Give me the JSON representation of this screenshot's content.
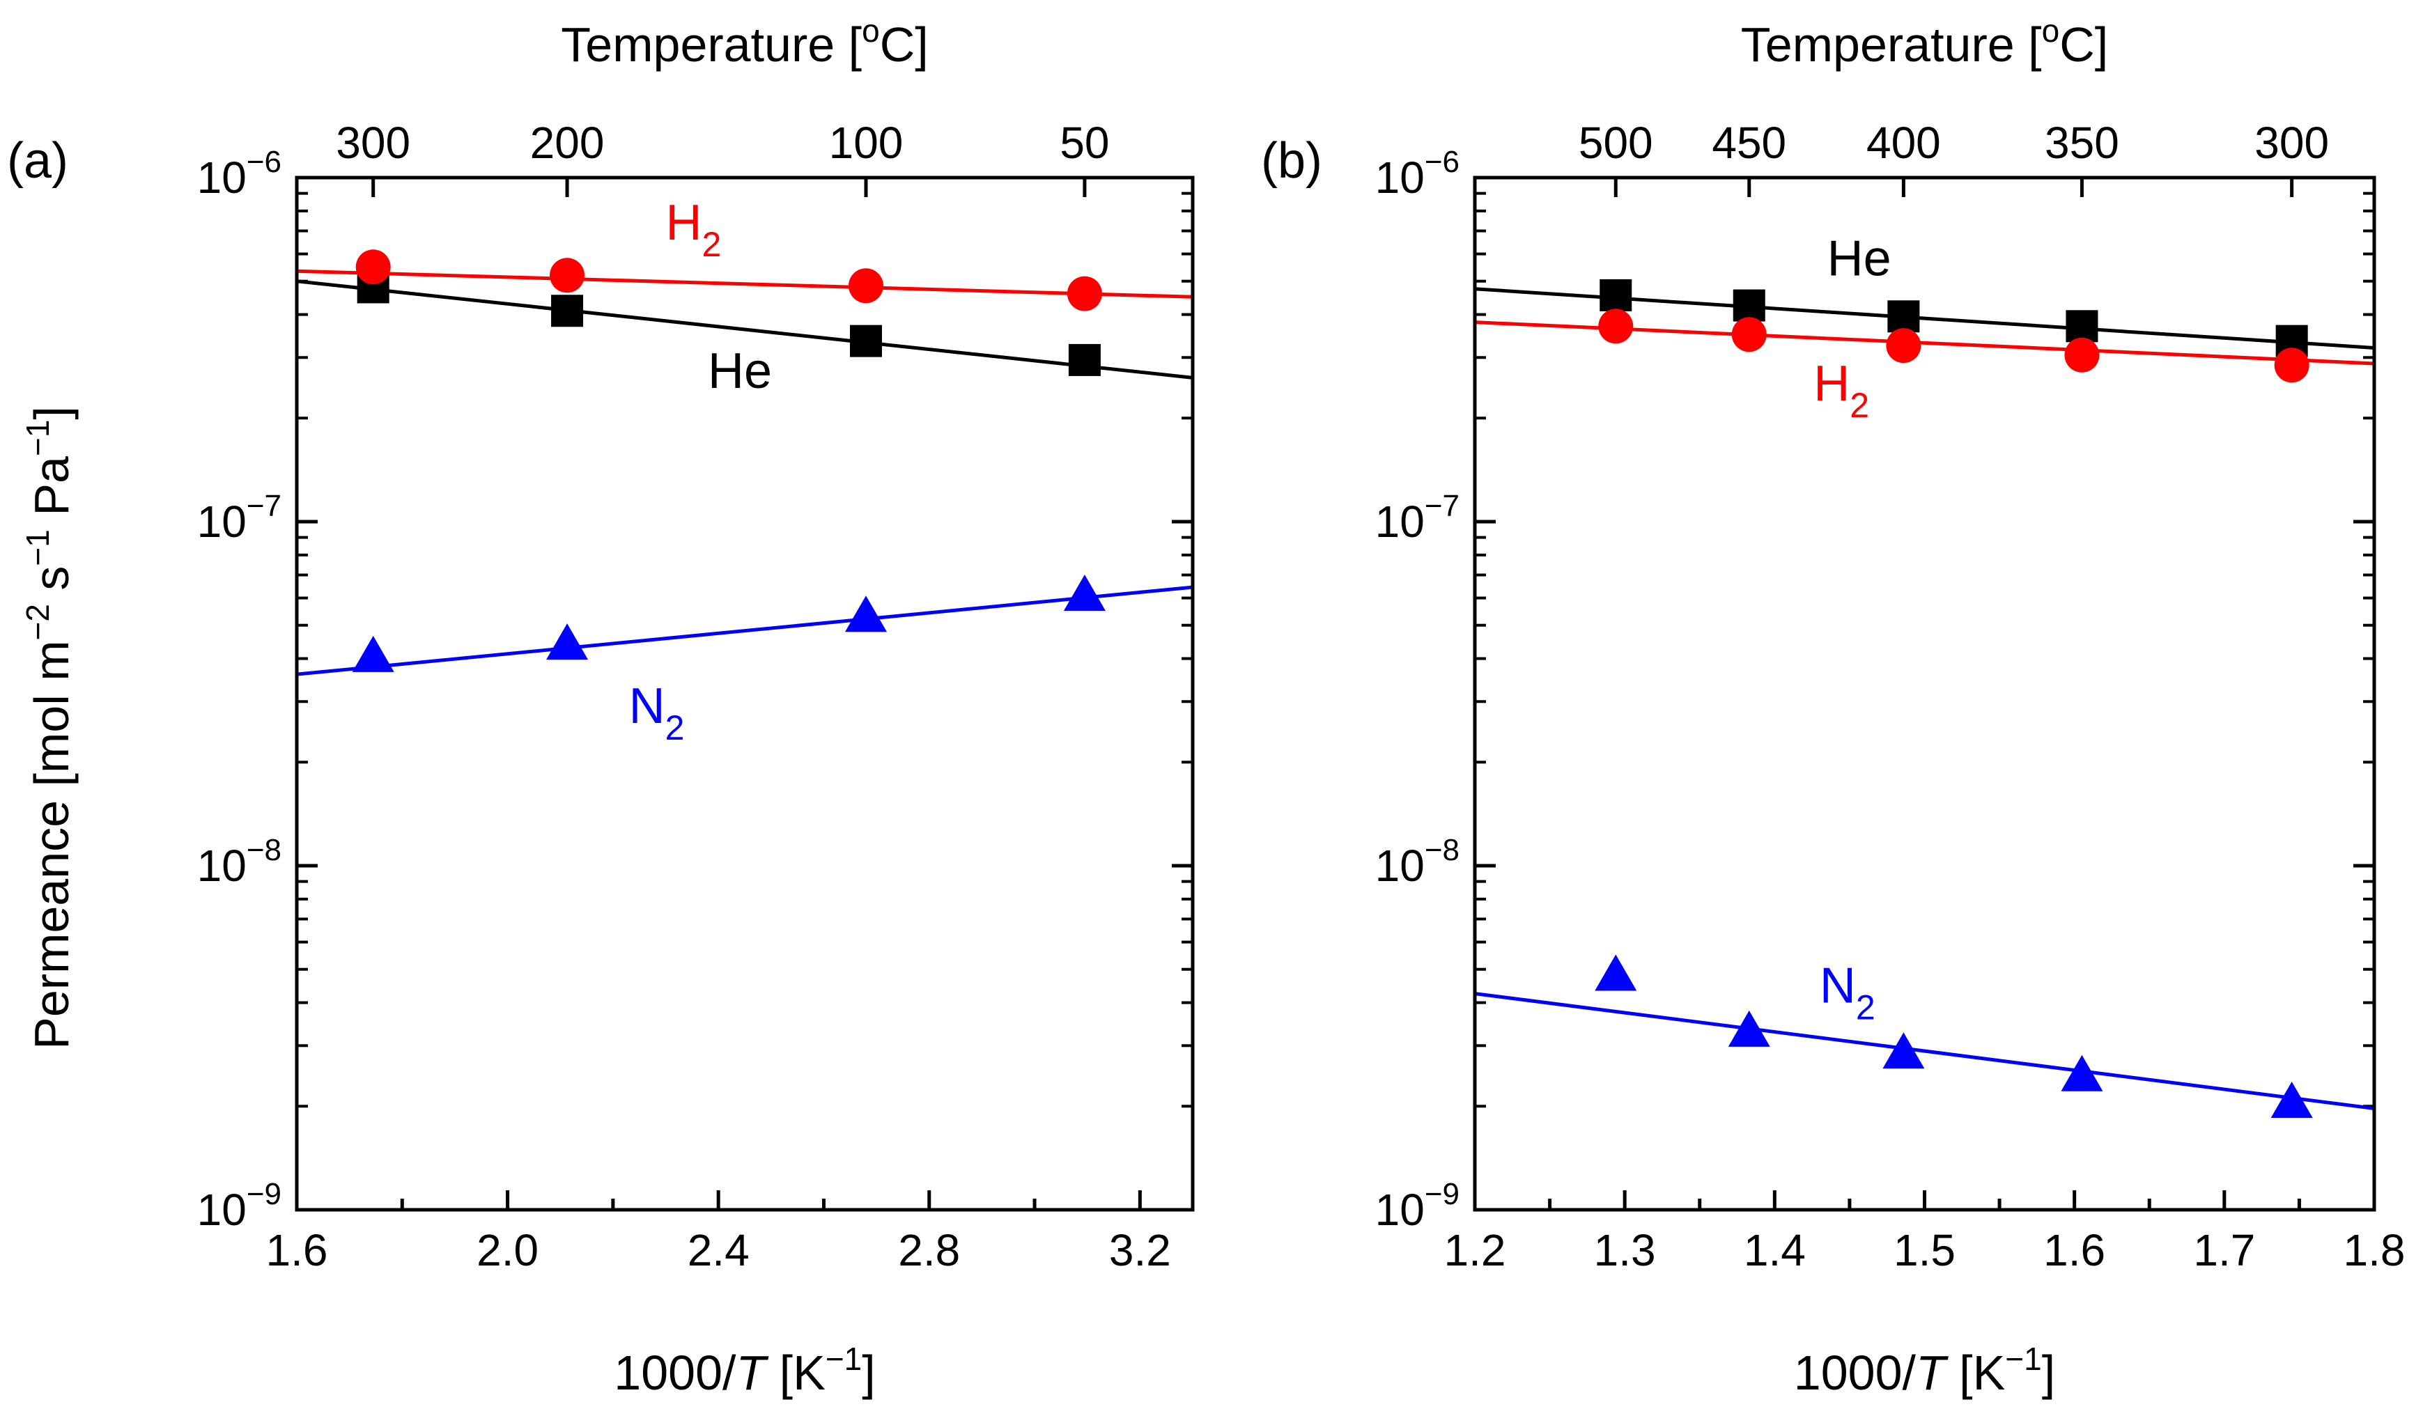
{
  "y_axis_label": {
    "prefix": "Permeance [mol m",
    "exp_m": "−2",
    "mid": " s",
    "exp_s": "−1",
    "pa": " Pa",
    "exp_pa": "−1",
    "suffix": "]"
  },
  "chart_data": [
    {
      "type": "scatter",
      "panel_label": "(a)",
      "title": "",
      "xlabel": {
        "main": "1000/",
        "var": "T",
        "unit_open": " [K",
        "unit_exp": "−1",
        "unit_close": "]"
      },
      "top_axis_label": {
        "main": "Temperature [",
        "sup": "o",
        "unit": "C]"
      },
      "x_range": [
        1.6,
        3.3
      ],
      "y_range": [
        1e-09,
        1e-06
      ],
      "y_scale": "log",
      "x_ticks": [
        {
          "value": 1.6,
          "label": "1.6"
        },
        {
          "value": 2.0,
          "label": "2.0"
        },
        {
          "value": 2.4,
          "label": "2.4"
        },
        {
          "value": 2.8,
          "label": "2.8"
        },
        {
          "value": 3.2,
          "label": "3.2"
        }
      ],
      "x_minor_step": 0.2,
      "y_ticks": [
        {
          "value": 1e-06,
          "base": "10",
          "exp": "−6"
        },
        {
          "value": 1e-07,
          "base": "10",
          "exp": "−7"
        },
        {
          "value": 1e-08,
          "base": "10",
          "exp": "−8"
        },
        {
          "value": 1e-09,
          "base": "10",
          "exp": "−9"
        }
      ],
      "top_ticks": [
        {
          "value": 1.745,
          "label": "300"
        },
        {
          "value": 2.113,
          "label": "200"
        },
        {
          "value": 2.68,
          "label": "100"
        },
        {
          "value": 3.095,
          "label": "50"
        }
      ],
      "series": [
        {
          "name": "He",
          "color": "#000000",
          "marker": "square",
          "label_main": "He",
          "label_sub": "",
          "label_anchor": [
            2.38,
            2.45e-07
          ],
          "x": [
            1.745,
            2.113,
            2.68,
            3.095
          ],
          "y": [
            4.8e-07,
            4.1e-07,
            3.35e-07,
            2.95e-07
          ],
          "fit": {
            "x": [
              1.6,
              3.3
            ],
            "y": [
              5e-07,
              2.62e-07
            ]
          }
        },
        {
          "name": "H2",
          "color": "#ff0000",
          "marker": "circle",
          "label_main": "H",
          "label_sub": "2",
          "label_anchor": [
            2.3,
            6.6e-07
          ],
          "x": [
            1.745,
            2.113,
            2.68,
            3.095
          ],
          "y": [
            5.5e-07,
            5.2e-07,
            4.85e-07,
            4.6e-07
          ],
          "fit": {
            "x": [
              1.6,
              3.3
            ],
            "y": [
              5.35e-07,
              4.5e-07
            ]
          }
        },
        {
          "name": "N2",
          "color": "#0000ff",
          "marker": "triangle",
          "label_main": "N",
          "label_sub": "2",
          "label_anchor": [
            2.23,
            2.6e-08
          ],
          "x": [
            1.745,
            2.113,
            2.68,
            3.095
          ],
          "y": [
            4.05e-08,
            4.4e-08,
            5.3e-08,
            6.1e-08
          ],
          "fit": {
            "x": [
              1.6,
              3.3
            ],
            "y": [
              3.6e-08,
              6.45e-08
            ]
          }
        }
      ]
    },
    {
      "type": "scatter",
      "panel_label": "(b)",
      "title": "",
      "xlabel": {
        "main": "1000/",
        "var": "T",
        "unit_open": " [K",
        "unit_exp": "−1",
        "unit_close": "]"
      },
      "top_axis_label": {
        "main": "Temperature [",
        "sup": "o",
        "unit": "C]"
      },
      "x_range": [
        1.2,
        1.8
      ],
      "y_range": [
        1e-09,
        1e-06
      ],
      "y_scale": "log",
      "x_ticks": [
        {
          "value": 1.2,
          "label": "1.2"
        },
        {
          "value": 1.3,
          "label": "1.3"
        },
        {
          "value": 1.4,
          "label": "1.4"
        },
        {
          "value": 1.5,
          "label": "1.5"
        },
        {
          "value": 1.6,
          "label": "1.6"
        },
        {
          "value": 1.7,
          "label": "1.7"
        },
        {
          "value": 1.8,
          "label": "1.8"
        }
      ],
      "x_minor_step": 0.05,
      "y_ticks": [
        {
          "value": 1e-06,
          "base": "10",
          "exp": "−6"
        },
        {
          "value": 1e-07,
          "base": "10",
          "exp": "−7"
        },
        {
          "value": 1e-08,
          "base": "10",
          "exp": "−8"
        },
        {
          "value": 1e-09,
          "base": "10",
          "exp": "−9"
        }
      ],
      "top_ticks": [
        {
          "value": 1.294,
          "label": "500"
        },
        {
          "value": 1.383,
          "label": "450"
        },
        {
          "value": 1.486,
          "label": "400"
        },
        {
          "value": 1.605,
          "label": "350"
        },
        {
          "value": 1.745,
          "label": "300"
        }
      ],
      "series": [
        {
          "name": "He",
          "color": "#000000",
          "marker": "square",
          "label_main": "He",
          "label_sub": "",
          "label_anchor": [
            1.435,
            5.2e-07
          ],
          "x": [
            1.294,
            1.383,
            1.486,
            1.605,
            1.745
          ],
          "y": [
            4.55e-07,
            4.25e-07,
            3.95e-07,
            3.7e-07,
            3.35e-07
          ],
          "fit": {
            "x": [
              1.2,
              1.8
            ],
            "y": [
              4.75e-07,
              3.2e-07
            ]
          }
        },
        {
          "name": "H2",
          "color": "#ff0000",
          "marker": "circle",
          "label_main": "H",
          "label_sub": "2",
          "label_anchor": [
            1.426,
            2.25e-07
          ],
          "x": [
            1.294,
            1.383,
            1.486,
            1.605,
            1.745
          ],
          "y": [
            3.7e-07,
            3.5e-07,
            3.25e-07,
            3.05e-07,
            2.85e-07
          ],
          "fit": {
            "x": [
              1.2,
              1.8
            ],
            "y": [
              3.8e-07,
              2.88e-07
            ]
          }
        },
        {
          "name": "N2",
          "color": "#0000ff",
          "marker": "triangle",
          "label_main": "N",
          "label_sub": "2",
          "label_anchor": [
            1.43,
            4e-09
          ],
          "x": [
            1.294,
            1.383,
            1.486,
            1.605,
            1.745
          ],
          "y": [
            4.8e-09,
            3.3e-09,
            2.85e-09,
            2.45e-09,
            2.05e-09
          ],
          "fit": {
            "x": [
              1.2,
              1.8
            ],
            "y": [
              4.25e-09,
              1.97e-09
            ]
          }
        }
      ]
    }
  ]
}
